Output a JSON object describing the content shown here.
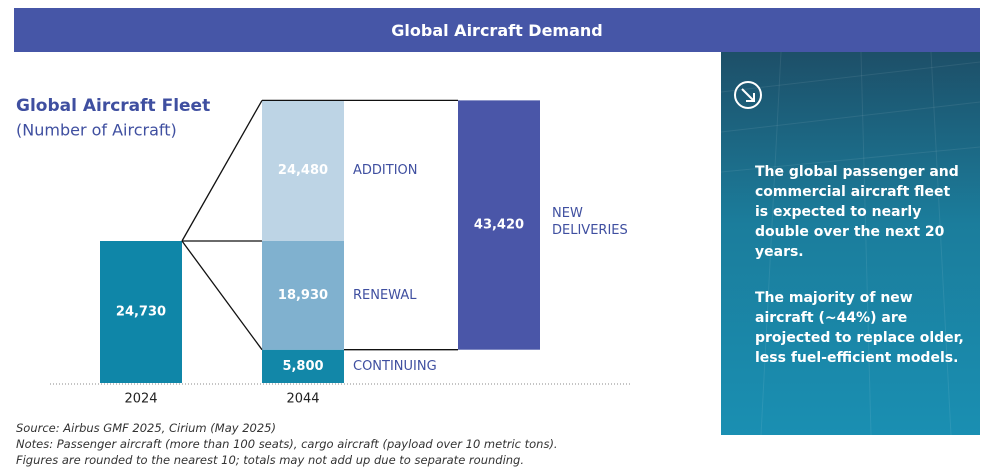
{
  "header": {
    "title": "Global Aircraft Demand"
  },
  "chart_data": {
    "type": "bar",
    "title": "Global Aircraft Fleet",
    "subtitle": "(Number of Aircraft)",
    "categories": [
      "2024",
      "2044"
    ],
    "fleet_2024": {
      "value": 24730,
      "label": "24,730",
      "color": "#0f86a8"
    },
    "segments_2044": [
      {
        "name": "CONTINUING",
        "value": 5800,
        "label": "5,800",
        "color": "#1287a8"
      },
      {
        "name": "RENEWAL",
        "value": 18930,
        "label": "18,930",
        "color": "#80b1cf"
      },
      {
        "name": "ADDITION",
        "value": 24480,
        "label": "24,480",
        "color": "#bdd4e5"
      }
    ],
    "new_deliveries": {
      "name": "NEW DELIVERIES",
      "value": 43420,
      "label": "43,420",
      "color": "#4a56a8"
    }
  },
  "sidebar": {
    "paragraphs": [
      "The global passenger and commercial aircraft fleet is expected to nearly double over the next 20 years.",
      "The majority of new aircraft (~44%) are projected to replace older, less fuel-efficient models."
    ]
  },
  "footnotes": [
    "Source: Airbus GMF 2025, Cirium (May 2025)",
    "Notes: Passenger aircraft (more than 100 seats), cargo aircraft (payload over 10 metric tons).",
    "Figures are rounded to the nearest 10; totals may not add up due to separate rounding."
  ]
}
